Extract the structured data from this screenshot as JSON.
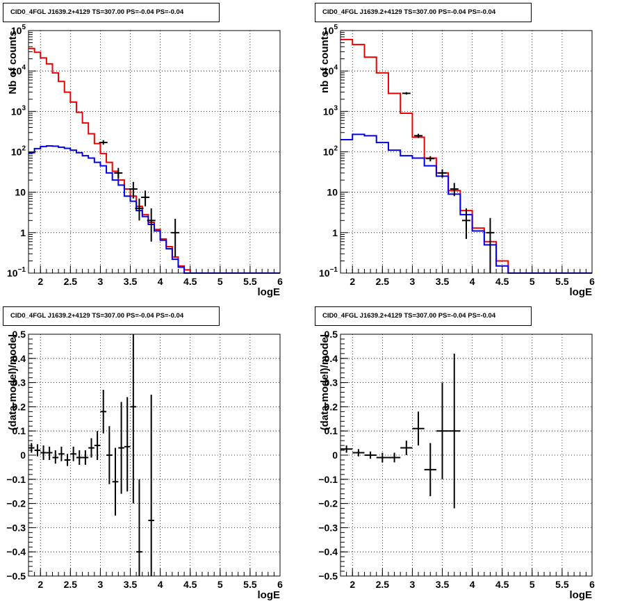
{
  "chart_data": [
    {
      "id": "p1",
      "type": "step",
      "title": "CID0_4FGL J1639.2+4129 TS=307.00 PS=-0.04 PS=-0.04",
      "xlabel": "logE",
      "ylabel": "Nb of counts",
      "xlim": [
        1.8,
        6.0
      ],
      "ylim": [
        0.1,
        100000
      ],
      "yscale": "log",
      "grid": true,
      "xticks": [
        {
          "v": 2,
          "label": "2"
        },
        {
          "v": 2.5,
          "label": "2.5"
        },
        {
          "v": 3,
          "label": "3"
        },
        {
          "v": 3.5,
          "label": "3.5"
        },
        {
          "v": 4,
          "label": "4"
        },
        {
          "v": 4.5,
          "label": "4.5"
        },
        {
          "v": 5,
          "label": "5"
        },
        {
          "v": 5.5,
          "label": "5.5"
        },
        {
          "v": 6,
          "label": "6"
        }
      ],
      "yticks": [
        {
          "v": 0.1,
          "base": "10",
          "exp": "−1"
        },
        {
          "v": 1,
          "base": "1",
          "exp": ""
        },
        {
          "v": 10,
          "base": "10",
          "exp": ""
        },
        {
          "v": 100,
          "base": "10",
          "exp": "2"
        },
        {
          "v": 1000,
          "base": "10",
          "exp": "3"
        },
        {
          "v": 10000,
          "base": "10",
          "exp": "4"
        },
        {
          "v": 100000,
          "base": "10",
          "exp": "5"
        }
      ],
      "bin_edges": [
        1.8,
        1.9,
        2.0,
        2.1,
        2.2,
        2.3,
        2.4,
        2.5,
        2.6,
        2.7,
        2.8,
        2.9,
        3.0,
        3.1,
        3.2,
        3.3,
        3.4,
        3.5,
        3.6,
        3.7,
        3.8,
        3.9,
        4.0,
        4.1,
        4.2,
        4.3,
        4.4,
        4.5,
        4.6,
        4.7,
        4.8,
        4.9,
        5.0,
        5.1,
        5.2,
        5.3,
        5.4,
        5.5,
        5.6,
        5.7,
        5.8,
        5.9,
        6.0
      ],
      "series": [
        {
          "color": "#ee0000",
          "kind": "step",
          "values": [
            36000,
            29000,
            21000,
            15000,
            9000,
            5500,
            3000,
            1700,
            950,
            520,
            280,
            160,
            90,
            55,
            33,
            20,
            12,
            8,
            4.5,
            2.8,
            1.8,
            1.2,
            0.7,
            0.45,
            0.25,
            0.15,
            0.12,
            0.1,
            0.1,
            0.1,
            0.1,
            0.1,
            0.1,
            0.1,
            0.1,
            0.1,
            0.1,
            0.1,
            0.1,
            0.1,
            0.1,
            0.1
          ]
        },
        {
          "color": "#0000ee",
          "kind": "step",
          "values": [
            95,
            120,
            135,
            140,
            138,
            130,
            122,
            110,
            95,
            80,
            70,
            55,
            45,
            30,
            20,
            15,
            8,
            6,
            3.5,
            2.5,
            1.6,
            1.1,
            0.65,
            0.4,
            0.22,
            0.14,
            0.1,
            0.1,
            0.1,
            0.1,
            0.1,
            0.1,
            0.1,
            0.1,
            0.1,
            0.1,
            0.1,
            0.1,
            0.1,
            0.1,
            0.1,
            0.1
          ]
        },
        {
          "color": "#000000",
          "kind": "points",
          "points": [
            {
              "x": 3.05,
              "y": 170,
              "ylo": 150,
              "yhi": 195
            },
            {
              "x": 3.3,
              "y": 30,
              "ylo": 22,
              "yhi": 40
            },
            {
              "x": 3.55,
              "y": 12,
              "ylo": 7,
              "yhi": 18
            },
            {
              "x": 3.65,
              "y": 4,
              "ylo": 2,
              "yhi": 7
            },
            {
              "x": 3.75,
              "y": 7.5,
              "ylo": 4.5,
              "yhi": 11
            },
            {
              "x": 3.85,
              "y": 2,
              "ylo": 0.6,
              "yhi": 4
            },
            {
              "x": 4.25,
              "y": 1,
              "ylo": 0.25,
              "yhi": 2.2
            }
          ]
        }
      ]
    },
    {
      "id": "p2",
      "type": "step",
      "title": "CID0_4FGL J1639.2+4129 TS=307.00 PS=-0.04 PS=-0.04",
      "xlabel": "logE",
      "ylabel": "nb of counts",
      "xlim": [
        1.8,
        6.0
      ],
      "ylim": [
        0.1,
        100000
      ],
      "yscale": "log",
      "grid": true,
      "xticks": [
        {
          "v": 2,
          "label": "2"
        },
        {
          "v": 2.5,
          "label": "2.5"
        },
        {
          "v": 3,
          "label": "3"
        },
        {
          "v": 3.5,
          "label": "3.5"
        },
        {
          "v": 4,
          "label": "4"
        },
        {
          "v": 4.5,
          "label": "4.5"
        },
        {
          "v": 5,
          "label": "5"
        },
        {
          "v": 5.5,
          "label": "5.5"
        },
        {
          "v": 6,
          "label": "6"
        }
      ],
      "yticks": [
        {
          "v": 0.1,
          "base": "10",
          "exp": "−1"
        },
        {
          "v": 1,
          "base": "1",
          "exp": ""
        },
        {
          "v": 10,
          "base": "10",
          "exp": ""
        },
        {
          "v": 100,
          "base": "10",
          "exp": "2"
        },
        {
          "v": 1000,
          "base": "10",
          "exp": "3"
        },
        {
          "v": 10000,
          "base": "10",
          "exp": "4"
        },
        {
          "v": 100000,
          "base": "10",
          "exp": "5"
        }
      ],
      "bin_edges": [
        1.8,
        2.0,
        2.2,
        2.4,
        2.6,
        2.8,
        3.0,
        3.2,
        3.4,
        3.6,
        3.8,
        4.0,
        4.2,
        4.4,
        4.6,
        4.8,
        5.0,
        5.2,
        5.4,
        5.6,
        5.8,
        6.0
      ],
      "series": [
        {
          "color": "#ee0000",
          "kind": "step",
          "values": [
            60000,
            45000,
            22000,
            9000,
            2800,
            900,
            230,
            70,
            30,
            11,
            3.5,
            1.3,
            0.6,
            0.2,
            0.1,
            0.1,
            0.1,
            0.1,
            0.1,
            0.1,
            0.1
          ]
        },
        {
          "color": "#0000ee",
          "kind": "step",
          "values": [
            200,
            270,
            250,
            170,
            110,
            80,
            70,
            45,
            25,
            9,
            2.8,
            1.1,
            0.5,
            0.15,
            0.1,
            0.1,
            0.1,
            0.1,
            0.1,
            0.1,
            0.1
          ]
        },
        {
          "color": "#000000",
          "kind": "points",
          "points": [
            {
              "x": 2.9,
              "y": 2800,
              "ylo": 2600,
              "yhi": 3000
            },
            {
              "x": 3.1,
              "y": 250,
              "ylo": 220,
              "yhi": 280
            },
            {
              "x": 3.3,
              "y": 68,
              "ylo": 58,
              "yhi": 78
            },
            {
              "x": 3.5,
              "y": 30,
              "ylo": 23,
              "yhi": 37
            },
            {
              "x": 3.7,
              "y": 12,
              "ylo": 8,
              "yhi": 17
            },
            {
              "x": 3.9,
              "y": 2,
              "ylo": 0.7,
              "yhi": 4
            },
            {
              "x": 4.3,
              "y": 1,
              "ylo": 0.1,
              "yhi": 2.3
            }
          ]
        }
      ]
    },
    {
      "id": "p3",
      "type": "scatter",
      "title": "CID0_4FGL J1639.2+4129 TS=307.00 PS=-0.04 PS=-0.04",
      "xlabel": "logE",
      "ylabel": "(data-model)/model",
      "xlim": [
        1.8,
        6.0
      ],
      "ylim": [
        -0.5,
        0.5
      ],
      "yscale": "linear",
      "grid": true,
      "xticks": [
        {
          "v": 2,
          "label": "2"
        },
        {
          "v": 2.5,
          "label": "2.5"
        },
        {
          "v": 3,
          "label": "3"
        },
        {
          "v": 3.5,
          "label": "3.5"
        },
        {
          "v": 4,
          "label": "4"
        },
        {
          "v": 4.5,
          "label": "4.5"
        },
        {
          "v": 5,
          "label": "5"
        },
        {
          "v": 5.5,
          "label": "5.5"
        },
        {
          "v": 6,
          "label": "6"
        }
      ],
      "yticks": [
        {
          "v": -0.5,
          "label": "−0.5"
        },
        {
          "v": -0.4,
          "label": "−0.4"
        },
        {
          "v": -0.3,
          "label": "−0.3"
        },
        {
          "v": -0.2,
          "label": "−0.2"
        },
        {
          "v": -0.1,
          "label": "−0.1"
        },
        {
          "v": 0,
          "label": "0"
        },
        {
          "v": 0.1,
          "label": "0.1"
        },
        {
          "v": 0.2,
          "label": "0.2"
        },
        {
          "v": 0.3,
          "label": "0.3"
        },
        {
          "v": 0.4,
          "label": "0.4"
        },
        {
          "v": 0.5,
          "label": "0.5"
        }
      ],
      "xerr": 0.05,
      "points": [
        {
          "x": 1.85,
          "y": 0.03,
          "ylo": 0.01,
          "yhi": 0.05
        },
        {
          "x": 1.95,
          "y": 0.02,
          "ylo": -0.005,
          "yhi": 0.045
        },
        {
          "x": 2.05,
          "y": 0.01,
          "ylo": -0.02,
          "yhi": 0.04
        },
        {
          "x": 2.15,
          "y": 0.01,
          "ylo": -0.02,
          "yhi": 0.035
        },
        {
          "x": 2.25,
          "y": -0.01,
          "ylo": -0.035,
          "yhi": 0.02
        },
        {
          "x": 2.35,
          "y": 0.005,
          "ylo": -0.025,
          "yhi": 0.035
        },
        {
          "x": 2.45,
          "y": -0.02,
          "ylo": -0.045,
          "yhi": 0.005
        },
        {
          "x": 2.55,
          "y": 0.005,
          "ylo": -0.025,
          "yhi": 0.035
        },
        {
          "x": 2.65,
          "y": -0.01,
          "ylo": -0.04,
          "yhi": 0.02
        },
        {
          "x": 2.75,
          "y": -0.01,
          "ylo": -0.04,
          "yhi": 0.02
        },
        {
          "x": 2.85,
          "y": 0.03,
          "ylo": -0.01,
          "yhi": 0.07
        },
        {
          "x": 2.95,
          "y": 0.04,
          "ylo": -0.02,
          "yhi": 0.1
        },
        {
          "x": 3.05,
          "y": 0.18,
          "ylo": 0.09,
          "yhi": 0.27
        },
        {
          "x": 3.15,
          "y": 0.0,
          "ylo": -0.12,
          "yhi": 0.12
        },
        {
          "x": 3.25,
          "y": -0.11,
          "ylo": -0.25,
          "yhi": 0.03
        },
        {
          "x": 3.35,
          "y": 0.03,
          "ylo": -0.16,
          "yhi": 0.22
        },
        {
          "x": 3.45,
          "y": 0.035,
          "ylo": -0.15,
          "yhi": 0.24
        },
        {
          "x": 3.55,
          "y": 0.2,
          "ylo": -0.2,
          "yhi": 0.5
        },
        {
          "x": 3.65,
          "y": -0.4,
          "ylo": -0.5,
          "yhi": -0.1
        },
        {
          "x": 3.85,
          "y": -0.27,
          "ylo": -0.5,
          "yhi": 0.25
        }
      ]
    },
    {
      "id": "p4",
      "type": "scatter",
      "title": "CID0_4FGL J1639.2+4129 TS=307.00 PS=-0.04 PS=-0.04",
      "xlabel": "logE",
      "ylabel": "(data-model)/model",
      "xlim": [
        1.8,
        6.0
      ],
      "ylim": [
        -0.5,
        0.5
      ],
      "yscale": "linear",
      "grid": true,
      "xticks": [
        {
          "v": 2,
          "label": "2"
        },
        {
          "v": 2.5,
          "label": "2.5"
        },
        {
          "v": 3,
          "label": "3"
        },
        {
          "v": 3.5,
          "label": "3.5"
        },
        {
          "v": 4,
          "label": "4"
        },
        {
          "v": 4.5,
          "label": "4.5"
        },
        {
          "v": 5,
          "label": "5"
        },
        {
          "v": 5.5,
          "label": "5.5"
        },
        {
          "v": 6,
          "label": "6"
        }
      ],
      "yticks": [
        {
          "v": -0.5,
          "label": "−0.5"
        },
        {
          "v": -0.4,
          "label": "−0.4"
        },
        {
          "v": -0.3,
          "label": "−0.3"
        },
        {
          "v": -0.2,
          "label": "−0.2"
        },
        {
          "v": -0.1,
          "label": "−0.1"
        },
        {
          "v": 0,
          "label": "0"
        },
        {
          "v": 0.1,
          "label": "0.1"
        },
        {
          "v": 0.2,
          "label": "0.2"
        },
        {
          "v": 0.3,
          "label": "0.3"
        },
        {
          "v": 0.4,
          "label": "0.4"
        },
        {
          "v": 0.5,
          "label": "0.5"
        }
      ],
      "xerr": 0.1,
      "points": [
        {
          "x": 1.9,
          "y": 0.025,
          "ylo": 0.01,
          "yhi": 0.04
        },
        {
          "x": 2.1,
          "y": 0.01,
          "ylo": -0.005,
          "yhi": 0.025
        },
        {
          "x": 2.3,
          "y": 0.0,
          "ylo": -0.015,
          "yhi": 0.015
        },
        {
          "x": 2.5,
          "y": -0.01,
          "ylo": -0.03,
          "yhi": 0.01
        },
        {
          "x": 2.7,
          "y": -0.01,
          "ylo": -0.03,
          "yhi": 0.01
        },
        {
          "x": 2.9,
          "y": 0.03,
          "ylo": 0.0,
          "yhi": 0.06
        },
        {
          "x": 3.1,
          "y": 0.11,
          "ylo": 0.04,
          "yhi": 0.18
        },
        {
          "x": 3.3,
          "y": -0.06,
          "ylo": -0.17,
          "yhi": 0.05
        },
        {
          "x": 3.5,
          "y": 0.1,
          "ylo": -0.1,
          "yhi": 0.3
        },
        {
          "x": 3.7,
          "y": 0.1,
          "ylo": -0.22,
          "yhi": 0.42
        }
      ]
    }
  ]
}
